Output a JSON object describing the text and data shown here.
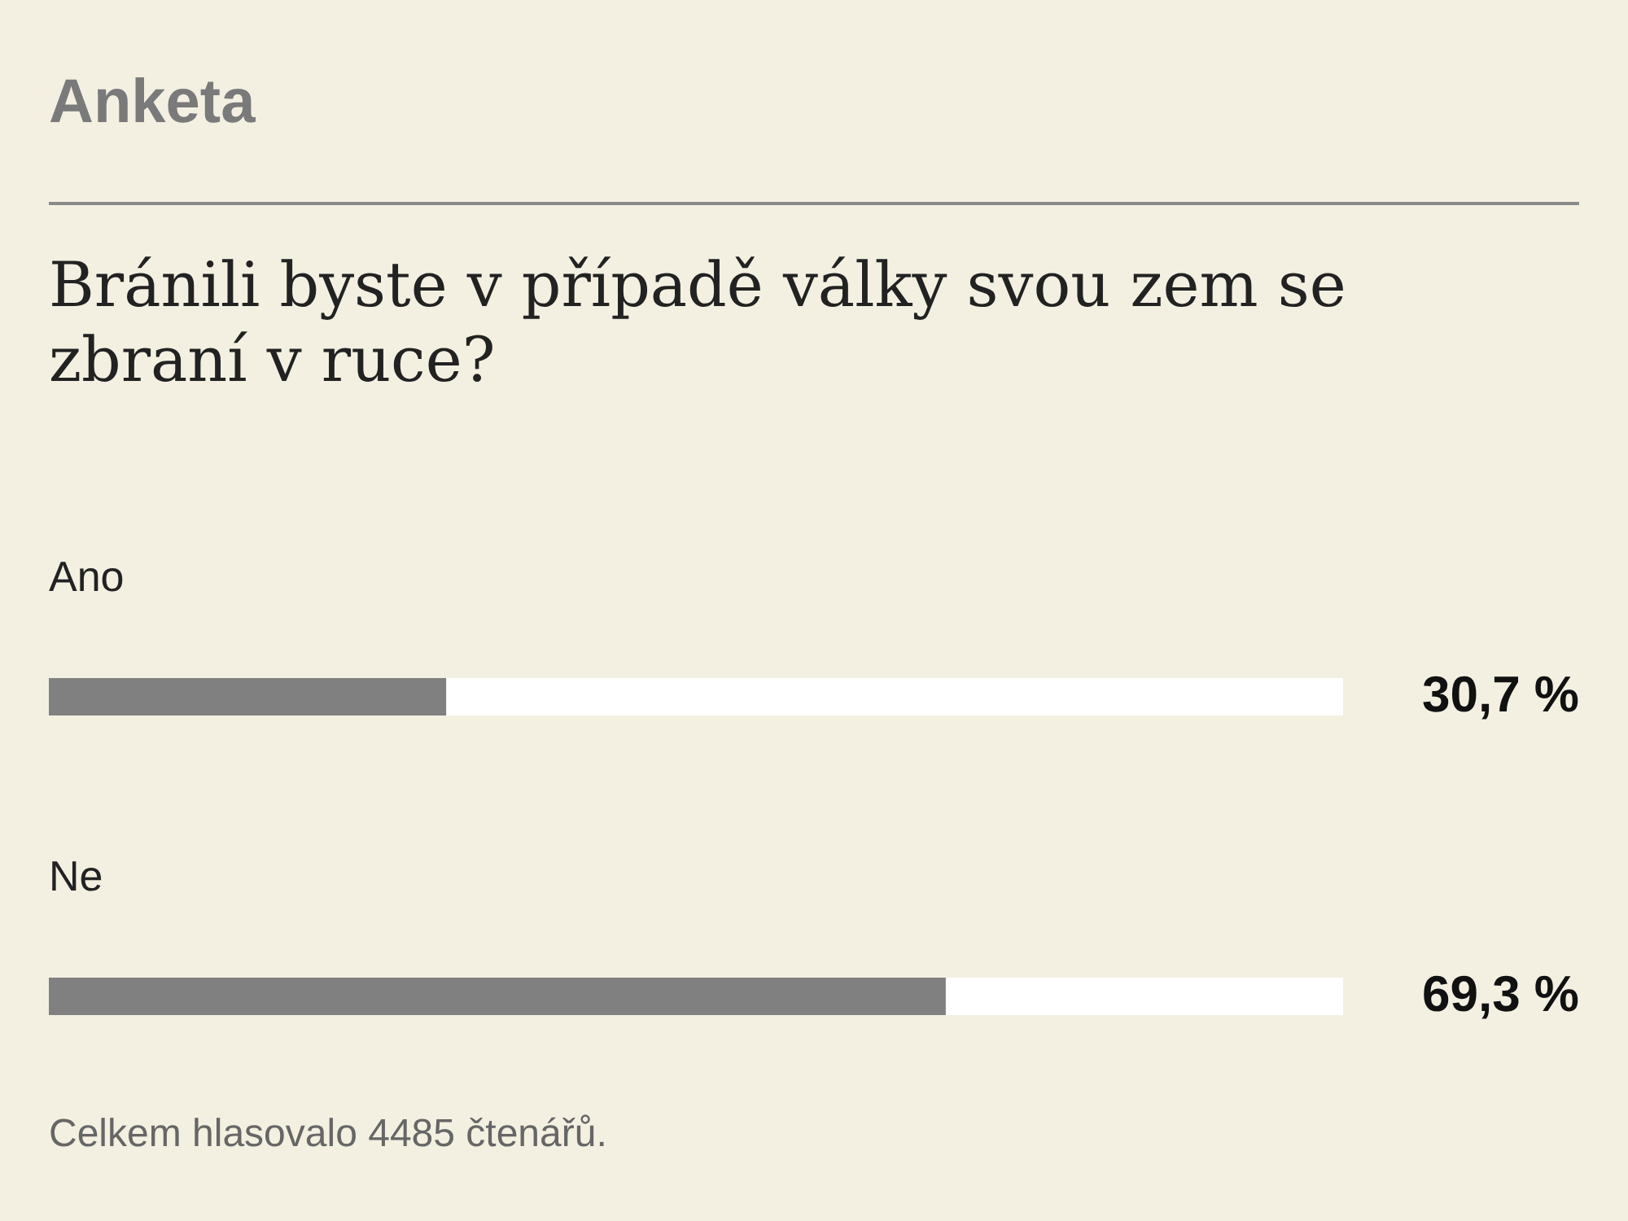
{
  "chart_data": {
    "type": "bar",
    "orientation": "horizontal",
    "title": "Anketa",
    "subtitle": "Bránili byste v případě války svou zem se zbraní v ruce?",
    "categories": [
      "Ano",
      "Ne"
    ],
    "values": [
      30.7,
      69.3
    ],
    "value_labels": [
      "30,7 %",
      "69,3 %"
    ],
    "color": "#808080",
    "xlim": [
      0,
      100
    ],
    "annotations": [
      "Celkem hlasovalo 4485 čtenářů."
    ]
  }
}
